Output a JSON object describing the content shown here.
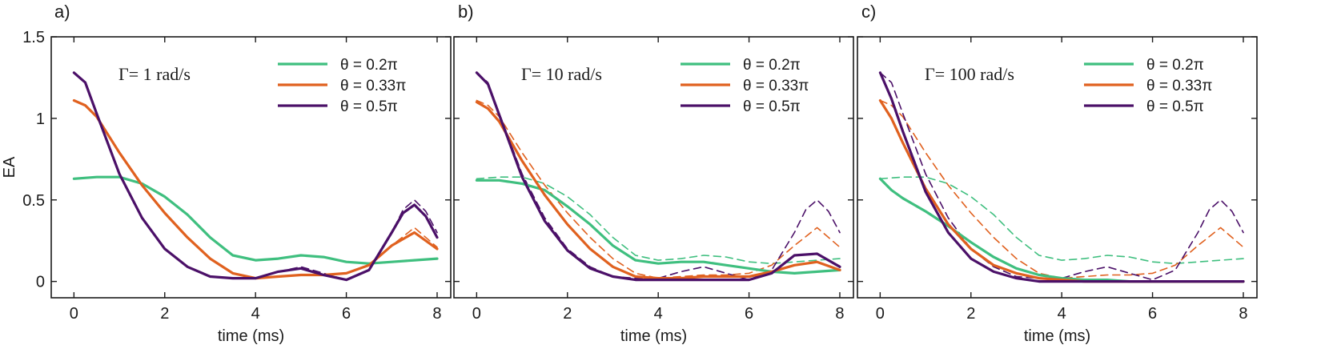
{
  "colors": {
    "green": "#3fbf7f",
    "orange": "#e0611f",
    "purple": "#4b1068",
    "axis": "#1a1a1a"
  },
  "chart_data": [
    {
      "type": "line",
      "panel_label": "a)",
      "annotation": "Γ= 1 rad/s",
      "xlabel": "time (ms)",
      "ylabel": "EA",
      "xlim": [
        -0.5,
        8.3
      ],
      "ylim": [
        -0.1,
        1.5
      ],
      "xticks": [
        "0",
        "2",
        "4",
        "6",
        "8"
      ],
      "yticks": [
        "0",
        "0.5",
        "1",
        "1.5"
      ],
      "series": [
        {
          "name": "θ = 0.2π",
          "color": "#3fbf7f",
          "style": "solid",
          "x": [
            0,
            0.5,
            1,
            1.5,
            2,
            2.5,
            3,
            3.5,
            4,
            4.5,
            5,
            5.5,
            6,
            6.5,
            7,
            7.5,
            8
          ],
          "y": [
            0.63,
            0.64,
            0.64,
            0.6,
            0.52,
            0.41,
            0.27,
            0.16,
            0.13,
            0.14,
            0.16,
            0.15,
            0.12,
            0.11,
            0.12,
            0.13,
            0.14
          ]
        },
        {
          "name": "θ = 0.33π",
          "color": "#e0611f",
          "style": "solid",
          "x": [
            0,
            0.25,
            0.5,
            1,
            1.5,
            2,
            2.5,
            3,
            3.5,
            4,
            4.5,
            5,
            5.5,
            6,
            6.5,
            7,
            7.5,
            8
          ],
          "y": [
            1.11,
            1.08,
            1.01,
            0.79,
            0.59,
            0.42,
            0.27,
            0.14,
            0.05,
            0.02,
            0.03,
            0.04,
            0.04,
            0.05,
            0.1,
            0.22,
            0.3,
            0.2
          ]
        },
        {
          "name": "θ = 0.5π",
          "color": "#4b1068",
          "style": "solid",
          "x": [
            0,
            0.25,
            0.5,
            1,
            1.5,
            2,
            2.5,
            3,
            3.5,
            4,
            4.5,
            5,
            5.5,
            6,
            6.5,
            7,
            7.25,
            7.5,
            7.75,
            8
          ],
          "y": [
            1.28,
            1.22,
            1.03,
            0.66,
            0.39,
            0.2,
            0.09,
            0.03,
            0.02,
            0.02,
            0.06,
            0.08,
            0.04,
            0.01,
            0.07,
            0.3,
            0.42,
            0.47,
            0.4,
            0.27
          ]
        },
        {
          "color": "#e0611f",
          "style": "dashed",
          "x": [
            6,
            6.5,
            7,
            7.5,
            8
          ],
          "y": [
            0.05,
            0.1,
            0.22,
            0.33,
            0.21
          ]
        },
        {
          "color": "#4b1068",
          "style": "dashed",
          "x": [
            4.5,
            5,
            5.5,
            6,
            6.5,
            7,
            7.25,
            7.5,
            7.75,
            8
          ],
          "y": [
            0.06,
            0.09,
            0.05,
            0.01,
            0.07,
            0.3,
            0.44,
            0.5,
            0.43,
            0.3
          ]
        }
      ]
    },
    {
      "type": "line",
      "panel_label": "b)",
      "annotation": "Γ= 10 rad/s",
      "xlabel": "time (ms)",
      "ylabel": "",
      "xlim": [
        -0.5,
        8.3
      ],
      "ylim": [
        -0.1,
        1.5
      ],
      "xticks": [
        "0",
        "2",
        "4",
        "6",
        "8"
      ],
      "yticks": [],
      "series": [
        {
          "name": "θ = 0.2π",
          "color": "#3fbf7f",
          "style": "solid",
          "x": [
            0,
            0.5,
            1,
            1.5,
            2,
            2.5,
            3,
            3.5,
            4,
            4.5,
            5,
            5.5,
            6,
            6.5,
            7,
            7.5,
            8
          ],
          "y": [
            0.62,
            0.62,
            0.6,
            0.56,
            0.46,
            0.35,
            0.22,
            0.13,
            0.11,
            0.12,
            0.12,
            0.1,
            0.08,
            0.06,
            0.05,
            0.06,
            0.07
          ]
        },
        {
          "name": "θ = 0.33π",
          "color": "#e0611f",
          "style": "solid",
          "x": [
            0,
            0.25,
            0.5,
            1,
            1.5,
            2,
            2.5,
            3,
            3.5,
            4,
            4.5,
            5,
            5.5,
            6,
            6.5,
            7,
            7.5,
            8
          ],
          "y": [
            1.1,
            1.06,
            0.98,
            0.74,
            0.53,
            0.35,
            0.2,
            0.09,
            0.03,
            0.02,
            0.02,
            0.03,
            0.03,
            0.03,
            0.06,
            0.1,
            0.12,
            0.07
          ]
        },
        {
          "name": "θ = 0.5π",
          "color": "#4b1068",
          "style": "solid",
          "x": [
            0,
            0.25,
            0.5,
            1,
            1.5,
            2,
            2.5,
            3,
            3.5,
            4,
            4.5,
            5,
            5.5,
            6,
            6.5,
            7,
            7.5,
            8
          ],
          "y": [
            1.28,
            1.21,
            1.02,
            0.64,
            0.37,
            0.19,
            0.08,
            0.03,
            0.01,
            0.01,
            0.01,
            0.01,
            0.01,
            0.01,
            0.05,
            0.16,
            0.17,
            0.09
          ]
        },
        {
          "color": "#3fbf7f",
          "style": "dashed",
          "x": [
            0,
            0.5,
            1,
            1.5,
            2,
            2.5,
            3,
            3.5,
            4,
            4.5,
            5,
            5.5,
            6,
            6.5,
            7,
            7.5,
            8
          ],
          "y": [
            0.63,
            0.64,
            0.64,
            0.6,
            0.52,
            0.41,
            0.27,
            0.16,
            0.13,
            0.14,
            0.16,
            0.15,
            0.12,
            0.11,
            0.12,
            0.13,
            0.14
          ]
        },
        {
          "color": "#e0611f",
          "style": "dashed",
          "x": [
            0,
            0.25,
            0.5,
            1,
            1.5,
            2,
            2.5,
            3,
            3.5,
            4,
            4.5,
            5,
            5.5,
            6,
            6.5,
            7,
            7.5,
            8
          ],
          "y": [
            1.11,
            1.08,
            1.01,
            0.79,
            0.59,
            0.42,
            0.27,
            0.14,
            0.05,
            0.02,
            0.03,
            0.04,
            0.04,
            0.05,
            0.1,
            0.22,
            0.33,
            0.21
          ]
        },
        {
          "color": "#4b1068",
          "style": "dashed",
          "x": [
            0,
            0.25,
            0.5,
            1,
            1.5,
            2,
            2.5,
            3,
            3.5,
            4,
            4.5,
            5,
            5.5,
            6,
            6.5,
            7,
            7.25,
            7.5,
            7.75,
            8
          ],
          "y": [
            1.28,
            1.22,
            1.03,
            0.66,
            0.39,
            0.2,
            0.09,
            0.03,
            0.02,
            0.02,
            0.06,
            0.09,
            0.05,
            0.01,
            0.07,
            0.3,
            0.44,
            0.5,
            0.43,
            0.3
          ]
        }
      ]
    },
    {
      "type": "line",
      "panel_label": "c)",
      "annotation": "Γ= 100 rad/s",
      "xlabel": "time (ms)",
      "ylabel": "",
      "xlim": [
        -0.5,
        8.3
      ],
      "ylim": [
        -0.1,
        1.5
      ],
      "xticks": [
        "0",
        "2",
        "4",
        "6",
        "8"
      ],
      "yticks": [],
      "series": [
        {
          "name": "θ = 0.2π",
          "color": "#3fbf7f",
          "style": "solid",
          "x": [
            0,
            0.25,
            0.5,
            1,
            1.5,
            2,
            2.5,
            3,
            3.5,
            4,
            4.5,
            5,
            5.5,
            6,
            6.5,
            7,
            7.5,
            8
          ],
          "y": [
            0.63,
            0.56,
            0.51,
            0.43,
            0.34,
            0.24,
            0.15,
            0.08,
            0.04,
            0.02,
            0.01,
            0.01,
            0.0,
            0.0,
            0.0,
            0.0,
            0.0,
            0.0
          ]
        },
        {
          "name": "θ = 0.33π",
          "color": "#e0611f",
          "style": "solid",
          "x": [
            0,
            0.25,
            0.5,
            1,
            1.5,
            2,
            2.5,
            3,
            3.5,
            4,
            4.5,
            5,
            5.5,
            6,
            6.5,
            7,
            7.5,
            8
          ],
          "y": [
            1.11,
            1.0,
            0.85,
            0.57,
            0.35,
            0.2,
            0.1,
            0.05,
            0.02,
            0.01,
            0.0,
            0.0,
            0.0,
            0.0,
            0.0,
            0.0,
            0.0,
            0.0
          ]
        },
        {
          "name": "θ = 0.5π",
          "color": "#4b1068",
          "style": "solid",
          "x": [
            0,
            0.25,
            0.5,
            1,
            1.5,
            2,
            2.5,
            3,
            3.5,
            4,
            4.5,
            5,
            5.5,
            6,
            6.5,
            7,
            7.5,
            8
          ],
          "y": [
            1.28,
            1.12,
            0.92,
            0.55,
            0.3,
            0.14,
            0.06,
            0.02,
            0.0,
            0.0,
            0.0,
            0.0,
            0.0,
            0.0,
            0.0,
            0.0,
            0.0,
            0.0
          ]
        },
        {
          "color": "#3fbf7f",
          "style": "dashed",
          "x": [
            0,
            0.5,
            1,
            1.5,
            2,
            2.5,
            3,
            3.5,
            4,
            4.5,
            5,
            5.5,
            6,
            6.5,
            7,
            7.5,
            8
          ],
          "y": [
            0.63,
            0.64,
            0.64,
            0.6,
            0.52,
            0.41,
            0.27,
            0.16,
            0.13,
            0.14,
            0.16,
            0.15,
            0.12,
            0.11,
            0.12,
            0.13,
            0.14
          ]
        },
        {
          "color": "#e0611f",
          "style": "dashed",
          "x": [
            0,
            0.25,
            0.5,
            1,
            1.5,
            2,
            2.5,
            3,
            3.5,
            4,
            4.5,
            5,
            5.5,
            6,
            6.5,
            7,
            7.5,
            8
          ],
          "y": [
            1.11,
            1.08,
            1.01,
            0.79,
            0.59,
            0.42,
            0.27,
            0.14,
            0.05,
            0.02,
            0.03,
            0.04,
            0.04,
            0.05,
            0.1,
            0.22,
            0.33,
            0.21
          ]
        },
        {
          "color": "#4b1068",
          "style": "dashed",
          "x": [
            0,
            0.25,
            0.5,
            1,
            1.5,
            2,
            2.5,
            3,
            3.5,
            4,
            4.5,
            5,
            5.5,
            6,
            6.5,
            7,
            7.25,
            7.5,
            7.75,
            8
          ],
          "y": [
            1.28,
            1.22,
            1.03,
            0.66,
            0.39,
            0.2,
            0.09,
            0.03,
            0.02,
            0.02,
            0.06,
            0.09,
            0.05,
            0.01,
            0.07,
            0.3,
            0.44,
            0.5,
            0.43,
            0.3
          ]
        }
      ]
    }
  ]
}
